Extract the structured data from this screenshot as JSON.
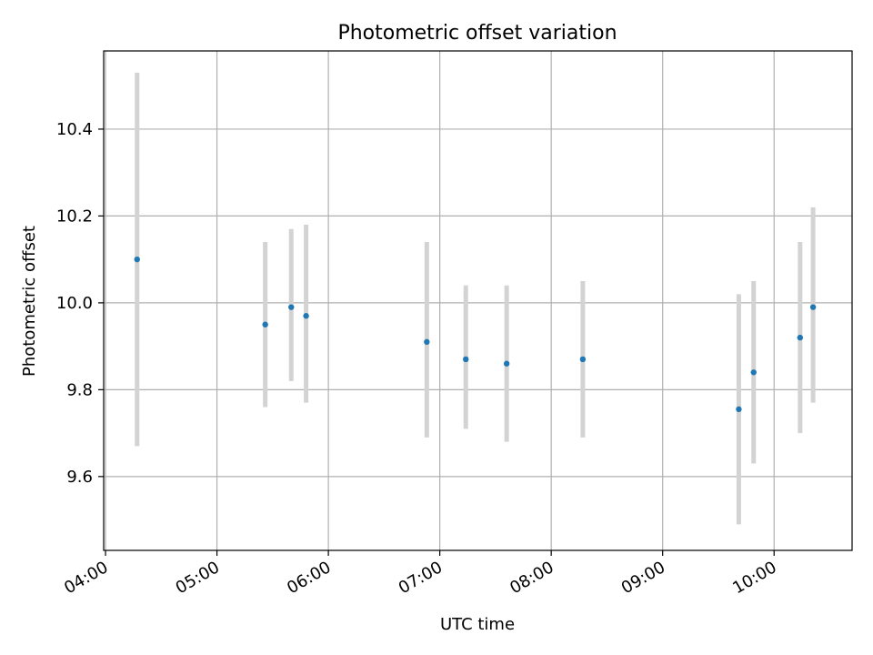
{
  "chart_data": {
    "type": "scatter",
    "title": "Photometric offset variation",
    "xlabel": "UTC time",
    "ylabel": "Photometric offset",
    "x_is_time": true,
    "xlim": [
      "03:59",
      "10:42"
    ],
    "ylim": [
      9.43,
      10.58
    ],
    "x_ticks": [
      "04:00",
      "05:00",
      "06:00",
      "07:00",
      "08:00",
      "09:00",
      "10:00"
    ],
    "y_ticks": [
      "9.6",
      "9.8",
      "10.0",
      "10.2",
      "10.4"
    ],
    "y_tick_values": [
      9.6,
      9.8,
      10.0,
      10.2,
      10.4
    ],
    "grid": true,
    "colors": {
      "point": "#1f77b4",
      "errorbar": "#d3d3d3",
      "grid": "#b0b0b0",
      "frame": "#000000"
    },
    "series": [
      {
        "points": [
          {
            "x": "04:17",
            "y": 10.1,
            "ylow": 9.67,
            "yhigh": 10.53
          },
          {
            "x": "05:26",
            "y": 9.95,
            "ylow": 9.76,
            "yhigh": 10.14
          },
          {
            "x": "05:40",
            "y": 9.99,
            "ylow": 9.82,
            "yhigh": 10.17
          },
          {
            "x": "05:48",
            "y": 9.97,
            "ylow": 9.77,
            "yhigh": 10.18
          },
          {
            "x": "06:53",
            "y": 9.91,
            "ylow": 9.69,
            "yhigh": 10.14
          },
          {
            "x": "07:14",
            "y": 9.87,
            "ylow": 9.71,
            "yhigh": 10.04
          },
          {
            "x": "07:36",
            "y": 9.86,
            "ylow": 9.68,
            "yhigh": 10.04
          },
          {
            "x": "08:17",
            "y": 9.87,
            "ylow": 9.69,
            "yhigh": 10.05
          },
          {
            "x": "09:41",
            "y": 9.755,
            "ylow": 9.49,
            "yhigh": 10.02
          },
          {
            "x": "09:49",
            "y": 9.84,
            "ylow": 9.63,
            "yhigh": 10.05
          },
          {
            "x": "10:14",
            "y": 9.92,
            "ylow": 9.7,
            "yhigh": 10.14
          },
          {
            "x": "10:21",
            "y": 9.99,
            "ylow": 9.77,
            "yhigh": 10.22
          }
        ]
      }
    ]
  }
}
